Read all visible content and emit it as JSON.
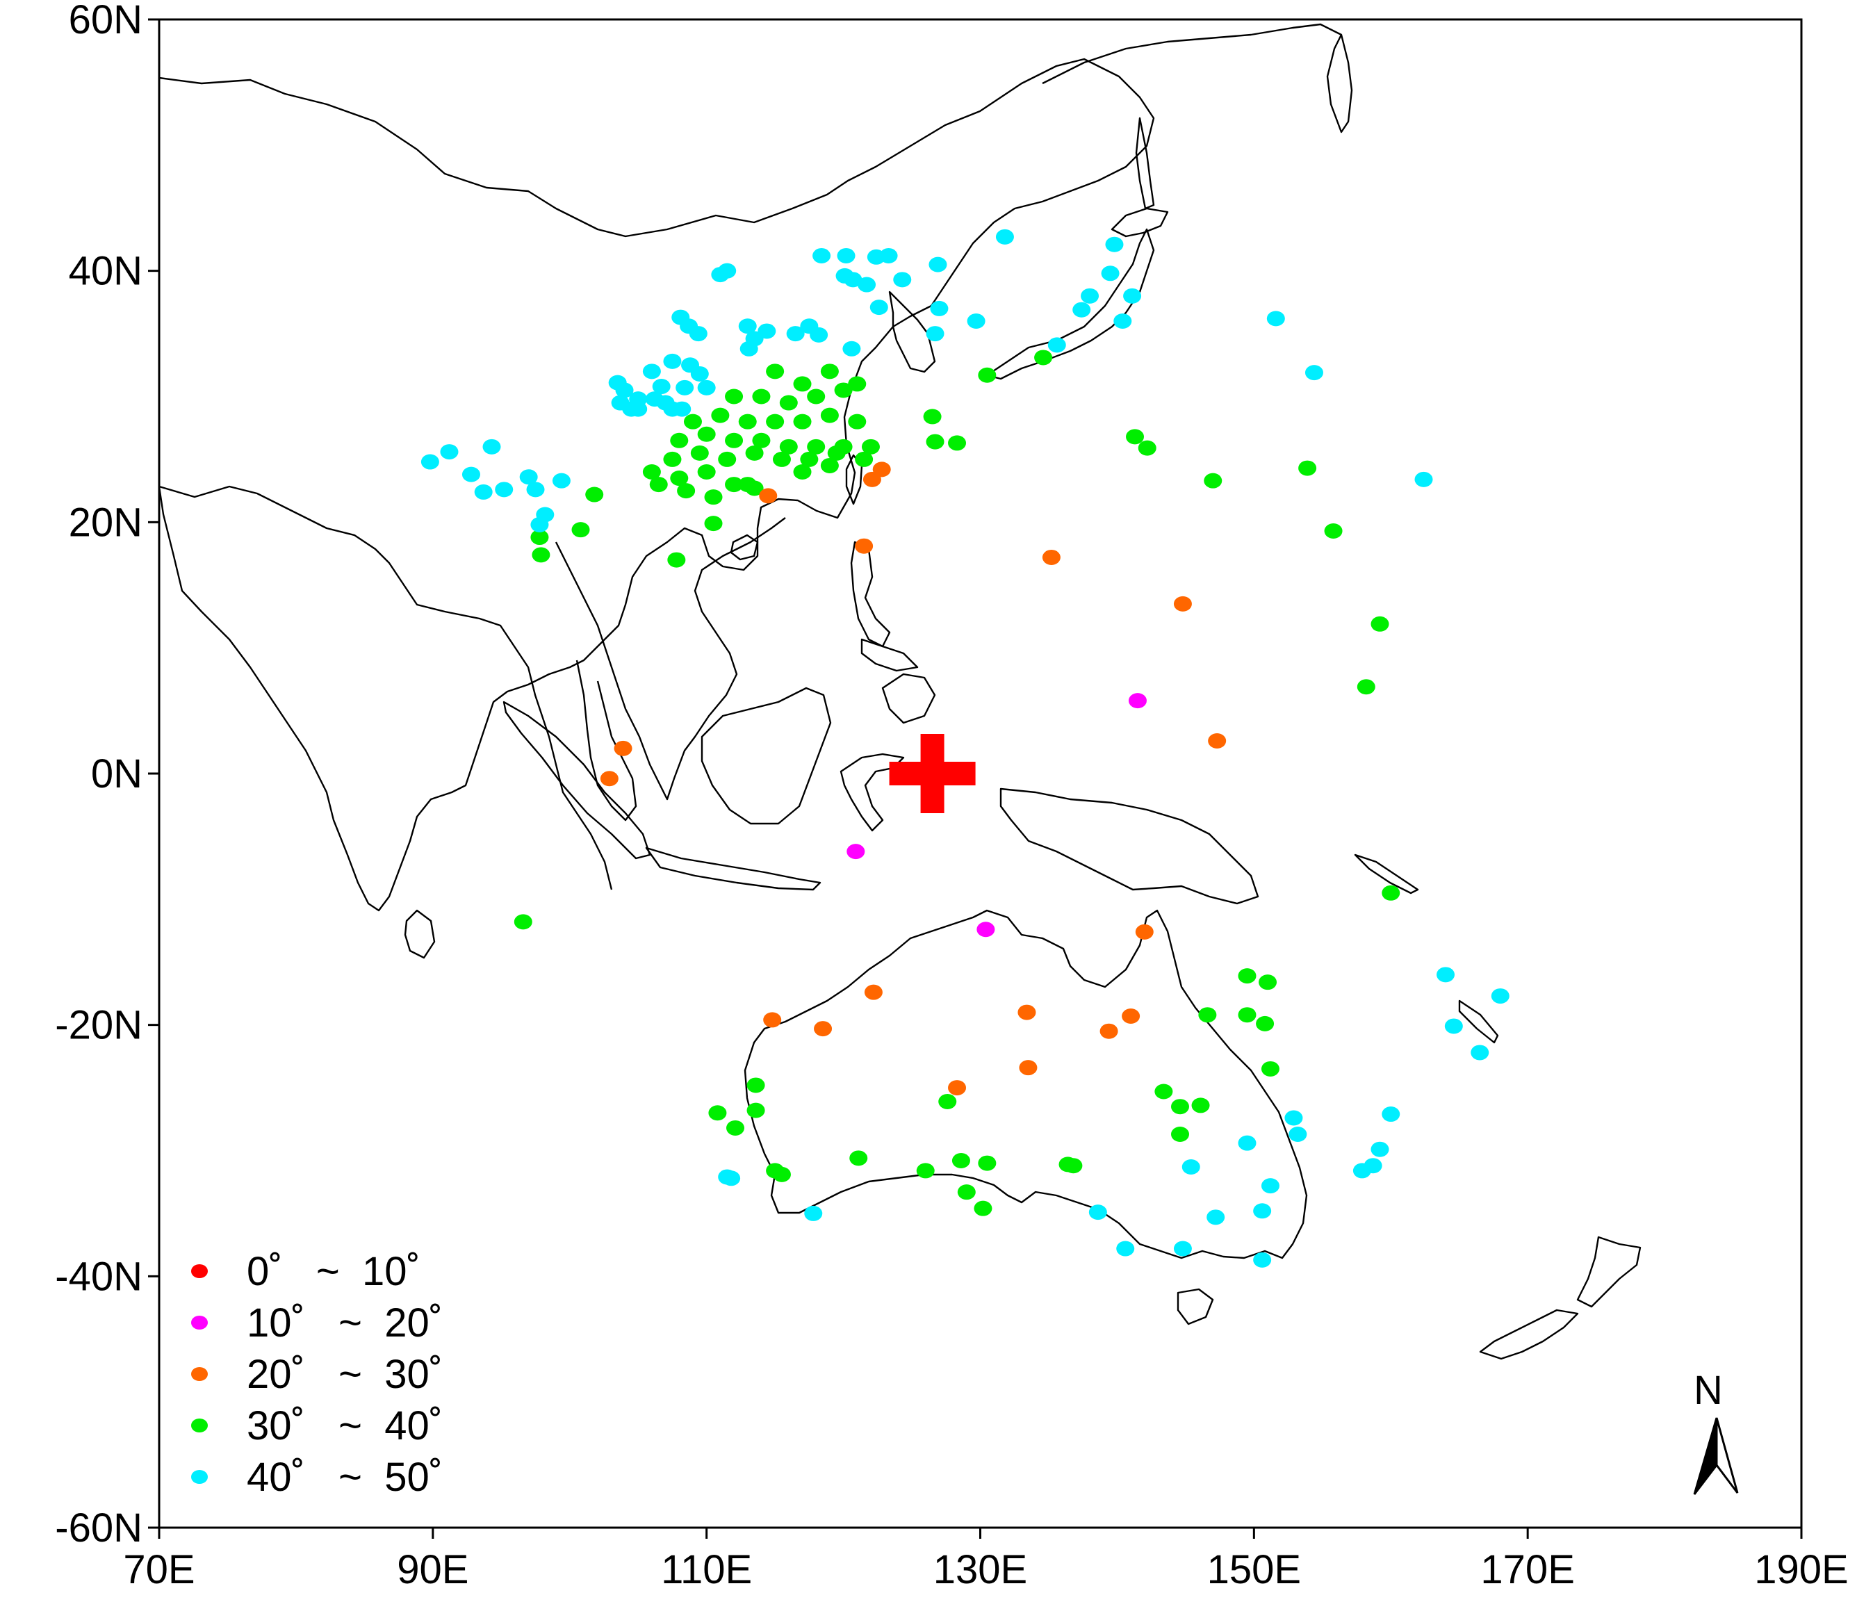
{
  "map": {
    "x_axis": {
      "min": 70,
      "max": 190,
      "ticks": [
        {
          "value": 70,
          "label": "70E"
        },
        {
          "value": 90,
          "label": "90E"
        },
        {
          "value": 110,
          "label": "110E"
        },
        {
          "value": 130,
          "label": "130E"
        },
        {
          "value": 150,
          "label": "150E"
        },
        {
          "value": 170,
          "label": "170E"
        },
        {
          "value": 190,
          "label": "190E"
        }
      ]
    },
    "y_axis": {
      "min": -60,
      "max": 60,
      "ticks": [
        {
          "value": 60,
          "label": "60N"
        },
        {
          "value": 40,
          "label": "40N"
        },
        {
          "value": 20,
          "label": "20N"
        },
        {
          "value": 0,
          "label": "0N"
        },
        {
          "value": -20,
          "label": "-20N"
        },
        {
          "value": -40,
          "label": "-40N"
        },
        {
          "value": -60,
          "label": "-60N"
        }
      ]
    },
    "center_marker": {
      "lon": 126.5,
      "lat": 0,
      "color": "#ff0000",
      "icon": "red-cross-icon"
    },
    "north_arrow": {
      "label": "N",
      "icon": "north-arrow-icon"
    },
    "legend": {
      "position": "bottom-left",
      "items": [
        {
          "range": "0˚   ~  10˚",
          "color": "#ff0000"
        },
        {
          "range": "10˚   ~  20˚",
          "color": "#ff00ff"
        },
        {
          "range": "20˚   ~  30˚",
          "color": "#ff6600"
        },
        {
          "range": "30˚   ~  40˚",
          "color": "#00ee00"
        },
        {
          "range": "40˚   ~  50˚",
          "color": "#00eeff"
        }
      ]
    },
    "stations": {
      "magenta": [
        [
          141.5,
          5.8
        ],
        [
          120.9,
          -6.2
        ],
        [
          130.4,
          -12.4
        ]
      ],
      "orange": [
        [
          114.5,
          22.1
        ],
        [
          122.1,
          23.4
        ],
        [
          122.8,
          24.2
        ],
        [
          121.5,
          18.1
        ],
        [
          135.2,
          17.2
        ],
        [
          144.8,
          13.5
        ],
        [
          147.3,
          2.6
        ],
        [
          103.9,
          2.0
        ],
        [
          102.9,
          -0.4
        ],
        [
          142.0,
          -12.6
        ],
        [
          122.2,
          -17.4
        ],
        [
          118.5,
          -20.3
        ],
        [
          114.8,
          -19.6
        ],
        [
          133.4,
          -19.0
        ],
        [
          141.0,
          -19.3
        ],
        [
          139.4,
          -20.5
        ],
        [
          128.3,
          -25.0
        ],
        [
          133.5,
          -23.4
        ]
      ],
      "green": [
        [
          115,
          32
        ],
        [
          117,
          31
        ],
        [
          119,
          32
        ],
        [
          121,
          31
        ],
        [
          112,
          30
        ],
        [
          114,
          30
        ],
        [
          116,
          29.5
        ],
        [
          118,
          30
        ],
        [
          120,
          30.5
        ],
        [
          109,
          28
        ],
        [
          111,
          28.5
        ],
        [
          113,
          28
        ],
        [
          115,
          28
        ],
        [
          117,
          28
        ],
        [
          119,
          28.5
        ],
        [
          121,
          28
        ],
        [
          108,
          26.5
        ],
        [
          110,
          27
        ],
        [
          112,
          26.5
        ],
        [
          114,
          26.5
        ],
        [
          116,
          26
        ],
        [
          118,
          26
        ],
        [
          120,
          26
        ],
        [
          122,
          26
        ],
        [
          107.5,
          25
        ],
        [
          109.5,
          25.5
        ],
        [
          111.5,
          25
        ],
        [
          113.5,
          25.5
        ],
        [
          115.5,
          25
        ],
        [
          117.5,
          25
        ],
        [
          119.5,
          25.5
        ],
        [
          121.5,
          25
        ],
        [
          106,
          24
        ],
        [
          108,
          23.5
        ],
        [
          110,
          24
        ],
        [
          112,
          23
        ],
        [
          117,
          24
        ],
        [
          119,
          24.5
        ],
        [
          113,
          23
        ],
        [
          106.5,
          23
        ],
        [
          108.5,
          22.5
        ],
        [
          110.5,
          22
        ],
        [
          113.5,
          22.7
        ],
        [
          110.5,
          19.9
        ],
        [
          107.8,
          17.0
        ],
        [
          97.8,
          18.8
        ],
        [
          97.9,
          17.4
        ],
        [
          100.8,
          19.4
        ],
        [
          101.8,
          22.2
        ],
        [
          130.5,
          31.7
        ],
        [
          134.6,
          33.1
        ],
        [
          126.5,
          28.4
        ],
        [
          126.7,
          26.4
        ],
        [
          128.3,
          26.3
        ],
        [
          141.3,
          26.8
        ],
        [
          142.2,
          25.9
        ],
        [
          147.0,
          23.3
        ],
        [
          153.9,
          24.3
        ],
        [
          155.8,
          19.3
        ],
        [
          159.2,
          11.9
        ],
        [
          158.2,
          6.9
        ],
        [
          160.0,
          -9.5
        ],
        [
          96.6,
          -11.8
        ],
        [
          149.5,
          -16.1
        ],
        [
          151.0,
          -16.6
        ],
        [
          149.5,
          -19.2
        ],
        [
          150.8,
          -19.9
        ],
        [
          146.6,
          -19.2
        ],
        [
          151.2,
          -23.5
        ],
        [
          143.4,
          -25.3
        ],
        [
          144.6,
          -26.5
        ],
        [
          146.1,
          -26.4
        ],
        [
          144.6,
          -28.7
        ],
        [
          127.6,
          -26.1
        ],
        [
          128.6,
          -30.8
        ],
        [
          130.5,
          -31.0
        ],
        [
          126.0,
          -31.6
        ],
        [
          121.1,
          -30.6
        ],
        [
          113.6,
          -24.8
        ],
        [
          110.8,
          -27.0
        ],
        [
          112.1,
          -28.2
        ],
        [
          113.6,
          -26.8
        ],
        [
          115.0,
          -31.6
        ],
        [
          115.5,
          -31.9
        ],
        [
          129.0,
          -33.3
        ],
        [
          130.2,
          -34.6
        ],
        [
          136.4,
          -31.1
        ],
        [
          136.8,
          -31.2
        ]
      ],
      "cyan": [
        [
          131.8,
          42.7
        ],
        [
          139.8,
          42.1
        ],
        [
          118.4,
          41.2
        ],
        [
          120.2,
          41.2
        ],
        [
          122.4,
          41.1
        ],
        [
          123.3,
          41.2
        ],
        [
          126.9,
          40.5
        ],
        [
          111.5,
          40.0
        ],
        [
          111.0,
          39.7
        ],
        [
          120.1,
          39.6
        ],
        [
          120.7,
          39.3
        ],
        [
          121.7,
          38.9
        ],
        [
          124.3,
          39.3
        ],
        [
          139.5,
          39.8
        ],
        [
          138.0,
          38.0
        ],
        [
          141.1,
          38.0
        ],
        [
          137.4,
          36.9
        ],
        [
          140.4,
          36.0
        ],
        [
          127.0,
          37.0
        ],
        [
          126.7,
          35.0
        ],
        [
          129.7,
          36.0
        ],
        [
          122.6,
          37.1
        ],
        [
          108.1,
          36.3
        ],
        [
          108.7,
          35.6
        ],
        [
          109.4,
          35.0
        ],
        [
          113.0,
          35.6
        ],
        [
          113.5,
          34.6
        ],
        [
          114.4,
          35.2
        ],
        [
          117.5,
          35.6
        ],
        [
          116.5,
          35.0
        ],
        [
          118.2,
          34.9
        ],
        [
          120.6,
          33.8
        ],
        [
          113.1,
          33.8
        ],
        [
          107.5,
          32.8
        ],
        [
          108.8,
          32.5
        ],
        [
          106.0,
          32.0
        ],
        [
          109.5,
          31.8
        ],
        [
          106.7,
          30.8
        ],
        [
          108.4,
          30.7
        ],
        [
          110.0,
          30.7
        ],
        [
          103.5,
          31.1
        ],
        [
          104.0,
          30.5
        ],
        [
          105.0,
          29.8
        ],
        [
          106.2,
          29.8
        ],
        [
          107.0,
          29.5
        ],
        [
          103.7,
          29.5
        ],
        [
          104.5,
          29.0
        ],
        [
          105.0,
          29.0
        ],
        [
          108.2,
          29.0
        ],
        [
          107.5,
          29.0
        ],
        [
          135.6,
          34.1
        ],
        [
          151.6,
          36.2
        ],
        [
          154.4,
          31.9
        ],
        [
          162.4,
          23.4
        ],
        [
          89.8,
          24.8
        ],
        [
          91.2,
          25.6
        ],
        [
          94.3,
          26.0
        ],
        [
          92.8,
          23.8
        ],
        [
          93.7,
          22.4
        ],
        [
          95.2,
          22.6
        ],
        [
          97.0,
          23.6
        ],
        [
          97.5,
          22.6
        ],
        [
          99.4,
          23.3
        ],
        [
          98.2,
          20.6
        ],
        [
          97.8,
          19.8
        ],
        [
          164.0,
          -16.0
        ],
        [
          164.6,
          -20.1
        ],
        [
          166.5,
          -22.2
        ],
        [
          168.0,
          -17.7
        ],
        [
          152.9,
          -27.4
        ],
        [
          153.2,
          -28.7
        ],
        [
          160.0,
          -27.1
        ],
        [
          149.5,
          -29.4
        ],
        [
          151.2,
          -32.8
        ],
        [
          145.4,
          -31.3
        ],
        [
          147.2,
          -35.3
        ],
        [
          150.6,
          -34.8
        ],
        [
          150.6,
          -38.7
        ],
        [
          144.8,
          -37.8
        ],
        [
          140.6,
          -37.8
        ],
        [
          138.6,
          -34.9
        ],
        [
          117.8,
          -35.0
        ],
        [
          111.5,
          -32.1
        ],
        [
          111.8,
          -32.2
        ],
        [
          157.9,
          -31.6
        ],
        [
          158.7,
          -31.2
        ],
        [
          159.2,
          -29.9
        ]
      ]
    }
  }
}
